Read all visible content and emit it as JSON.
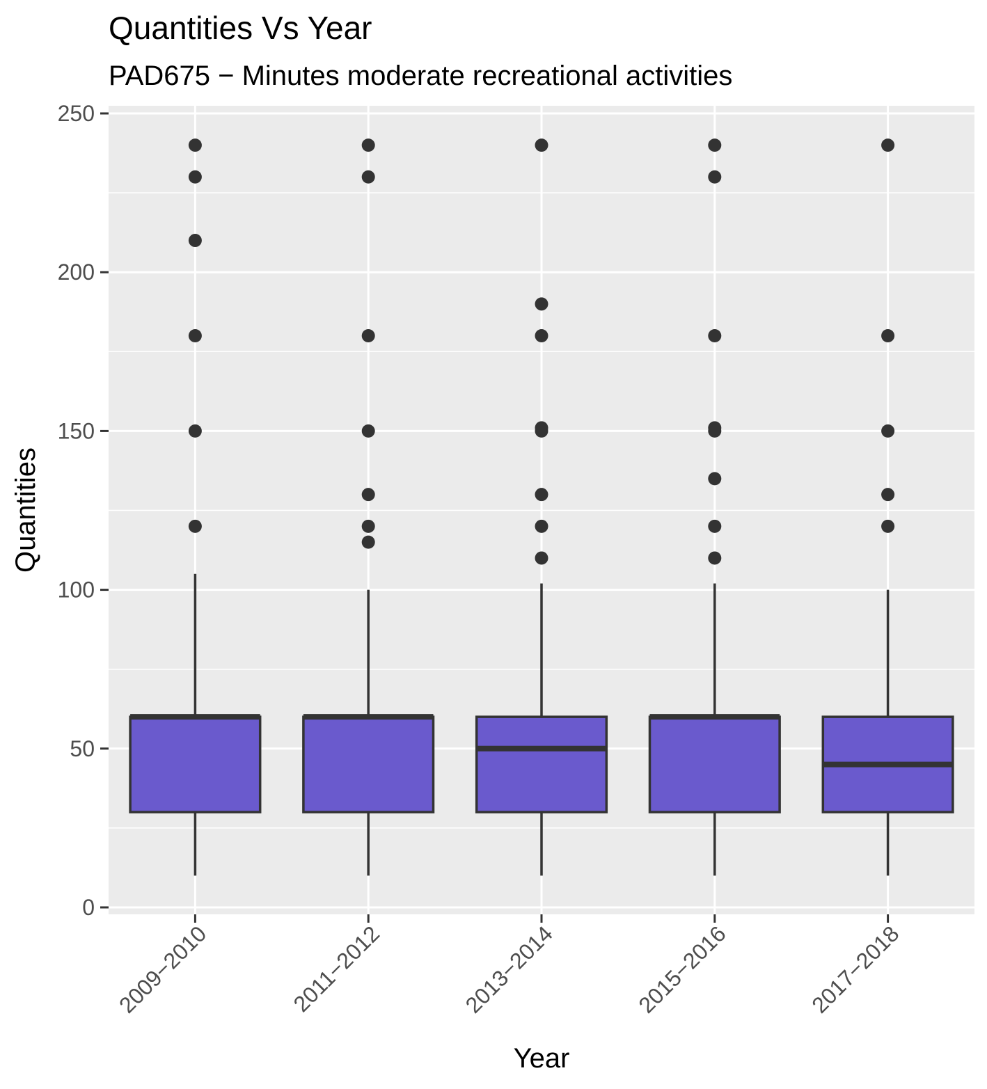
{
  "chart_data": {
    "type": "boxplot",
    "title": "Quantities Vs Year",
    "subtitle": "PAD675 − Minutes moderate recreational activities",
    "xlabel": "Year",
    "ylabel": "Quantities",
    "ylim": [
      0,
      250
    ],
    "yticks": [
      0,
      50,
      100,
      150,
      200,
      250
    ],
    "ytick_labels": [
      "0",
      "50",
      "100",
      "150",
      "200",
      "250"
    ],
    "grid": true,
    "legend": "none",
    "box_color": "#6a5acd",
    "categories": [
      "2009−2010",
      "2011−2012",
      "2013−2014",
      "2015−2016",
      "2017−2018"
    ],
    "boxes": [
      {
        "category": "2009−2010",
        "whisker_low": 10,
        "q1": 30,
        "median": 60,
        "q3": 60,
        "whisker_high": 105,
        "outliers": [
          120,
          150,
          180,
          210,
          230,
          240
        ]
      },
      {
        "category": "2011−2012",
        "whisker_low": 10,
        "q1": 30,
        "median": 60,
        "q3": 60,
        "whisker_high": 100,
        "outliers": [
          115,
          120,
          130,
          150,
          180,
          230,
          240
        ]
      },
      {
        "category": "2013−2014",
        "whisker_low": 10,
        "q1": 30,
        "median": 50,
        "q3": 60,
        "whisker_high": 102,
        "outliers": [
          110,
          120,
          130,
          150,
          151,
          180,
          190,
          240
        ]
      },
      {
        "category": "2015−2016",
        "whisker_low": 10,
        "q1": 30,
        "median": 60,
        "q3": 60,
        "whisker_high": 102,
        "outliers": [
          110,
          120,
          135,
          150,
          151,
          180,
          230,
          240
        ]
      },
      {
        "category": "2017−2018",
        "whisker_low": 10,
        "q1": 30,
        "median": 45,
        "q3": 60,
        "whisker_high": 100,
        "outliers": [
          120,
          130,
          150,
          180,
          240
        ]
      }
    ]
  }
}
